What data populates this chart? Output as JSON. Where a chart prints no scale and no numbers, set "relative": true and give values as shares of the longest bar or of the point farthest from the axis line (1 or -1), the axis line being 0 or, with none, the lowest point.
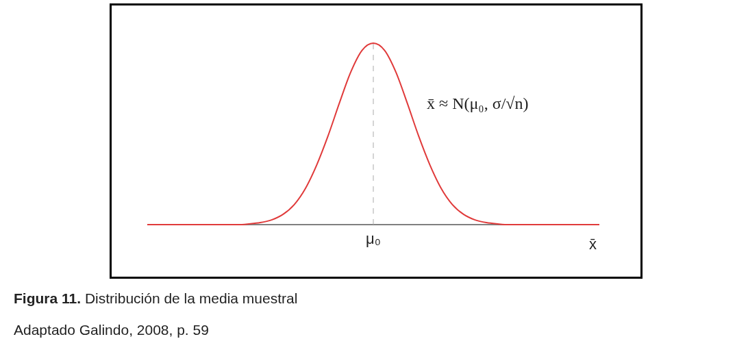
{
  "chart_data": {
    "type": "line",
    "relative": true,
    "xlabel": "x̄",
    "categories": [
      null,
      null,
      null,
      null,
      null,
      null,
      null,
      null,
      null,
      null,
      null,
      null,
      null,
      null,
      null,
      null,
      null,
      null,
      null,
      null,
      null,
      null,
      null,
      null,
      null,
      null,
      null,
      null,
      null,
      null,
      null,
      null,
      null,
      null,
      null,
      null,
      null,
      null,
      null,
      null,
      null
    ],
    "values": [
      0,
      0,
      0,
      0,
      0,
      0,
      0,
      0,
      0,
      0.004,
      0.011,
      0.026,
      0.056,
      0.11,
      0.2,
      0.33,
      0.49,
      0.67,
      0.84,
      0.96,
      1,
      0.96,
      0.84,
      0.67,
      0.49,
      0.33,
      0.2,
      0.11,
      0.056,
      0.026,
      0.011,
      0.004,
      0,
      0,
      0,
      0,
      0,
      0,
      0,
      0,
      0
    ],
    "color": "#e03a3a",
    "ref_lines": [
      {
        "axis": "x",
        "label": "μ₀",
        "color": "#aaaaaa",
        "line_style": "dashed"
      }
    ],
    "annotations": [
      "x̄ ≈ N(μ₀, σ/√n)",
      "Figura 11. Distribución de la media muestral",
      "Adaptado Galindo, 2008, p. 59"
    ]
  }
}
